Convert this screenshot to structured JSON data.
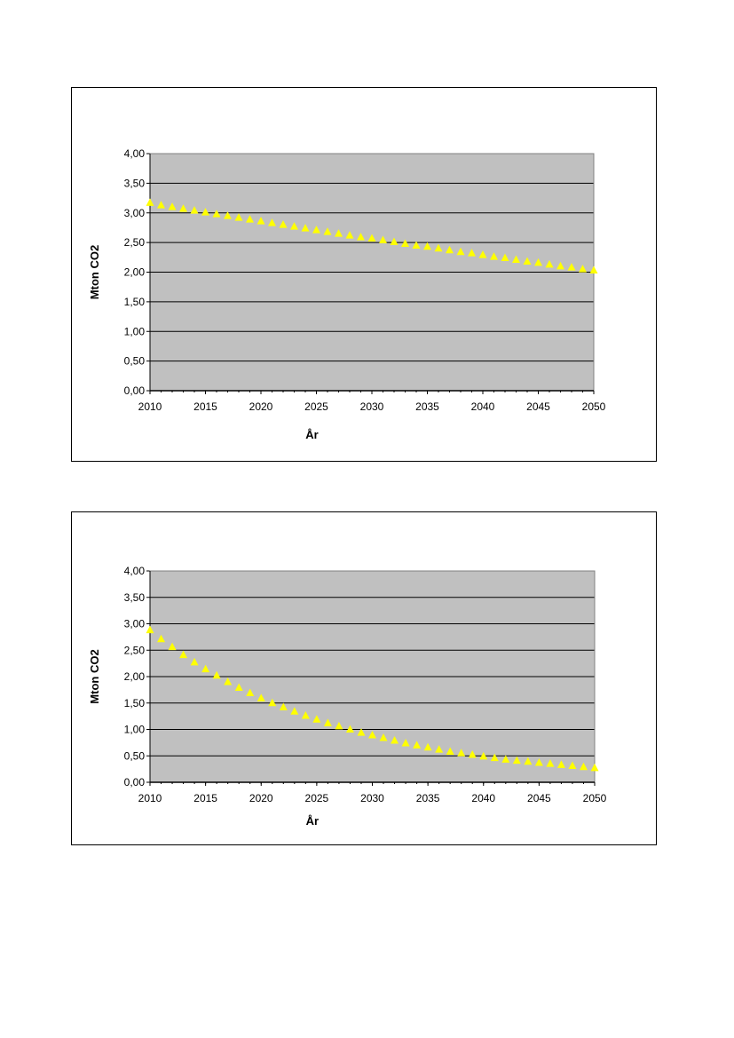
{
  "chart_data": [
    {
      "type": "scatter",
      "title": "",
      "xlabel": "År",
      "ylabel": "Mton CO2",
      "xlim": [
        2010,
        2050
      ],
      "ylim": [
        0,
        4
      ],
      "xticks": [
        "2010",
        "2015",
        "2020",
        "2025",
        "2030",
        "2035",
        "2040",
        "2045",
        "2050"
      ],
      "yticks": [
        "0,00",
        "0,50",
        "1,00",
        "1,50",
        "2,00",
        "2,50",
        "3,00",
        "3,50",
        "4,00"
      ],
      "grid": true,
      "plot_background": "#c0c0c0",
      "marker": "triangle",
      "marker_color": "#ffff00",
      "series": [
        {
          "x": [
            2010,
            2011,
            2012,
            2013,
            2014,
            2015,
            2016,
            2017,
            2018,
            2019,
            2020,
            2021,
            2022,
            2023,
            2024,
            2025,
            2026,
            2027,
            2028,
            2029,
            2030,
            2031,
            2032,
            2033,
            2034,
            2035,
            2036,
            2037,
            2038,
            2039,
            2040,
            2041,
            2042,
            2043,
            2044,
            2045,
            2046,
            2047,
            2048,
            2049,
            2050
          ],
          "values": [
            3.17,
            3.13,
            3.1,
            3.07,
            3.04,
            3.01,
            2.98,
            2.95,
            2.92,
            2.89,
            2.86,
            2.83,
            2.8,
            2.77,
            2.74,
            2.71,
            2.68,
            2.65,
            2.62,
            2.59,
            2.57,
            2.54,
            2.51,
            2.48,
            2.45,
            2.43,
            2.4,
            2.37,
            2.34,
            2.32,
            2.29,
            2.26,
            2.24,
            2.21,
            2.18,
            2.16,
            2.13,
            2.1,
            2.08,
            2.05,
            2.03
          ]
        }
      ]
    },
    {
      "type": "scatter",
      "title": "",
      "xlabel": "År",
      "ylabel": "Mton CO2",
      "xlim": [
        2010,
        2050
      ],
      "ylim": [
        0,
        4
      ],
      "xticks": [
        "2010",
        "2015",
        "2020",
        "2025",
        "2030",
        "2035",
        "2040",
        "2045",
        "2050"
      ],
      "yticks": [
        "0,00",
        "0,50",
        "1,00",
        "1,50",
        "2,00",
        "2,50",
        "3,00",
        "3,50",
        "4,00"
      ],
      "grid": true,
      "plot_background": "#c0c0c0",
      "marker": "triangle",
      "marker_color": "#ffff00",
      "series": [
        {
          "x": [
            2010,
            2011,
            2012,
            2013,
            2014,
            2015,
            2016,
            2017,
            2018,
            2019,
            2020,
            2021,
            2022,
            2023,
            2024,
            2025,
            2026,
            2027,
            2028,
            2029,
            2030,
            2031,
            2032,
            2033,
            2034,
            2035,
            2036,
            2037,
            2038,
            2039,
            2040,
            2041,
            2042,
            2043,
            2044,
            2045,
            2046,
            2047,
            2048,
            2049,
            2050
          ],
          "values": [
            2.88,
            2.71,
            2.56,
            2.41,
            2.27,
            2.14,
            2.02,
            1.9,
            1.79,
            1.69,
            1.59,
            1.5,
            1.42,
            1.34,
            1.26,
            1.19,
            1.12,
            1.06,
            1.0,
            0.94,
            0.89,
            0.84,
            0.79,
            0.74,
            0.7,
            0.66,
            0.62,
            0.58,
            0.55,
            0.52,
            0.49,
            0.46,
            0.43,
            0.41,
            0.39,
            0.37,
            0.35,
            0.33,
            0.31,
            0.29,
            0.27
          ]
        }
      ]
    }
  ]
}
